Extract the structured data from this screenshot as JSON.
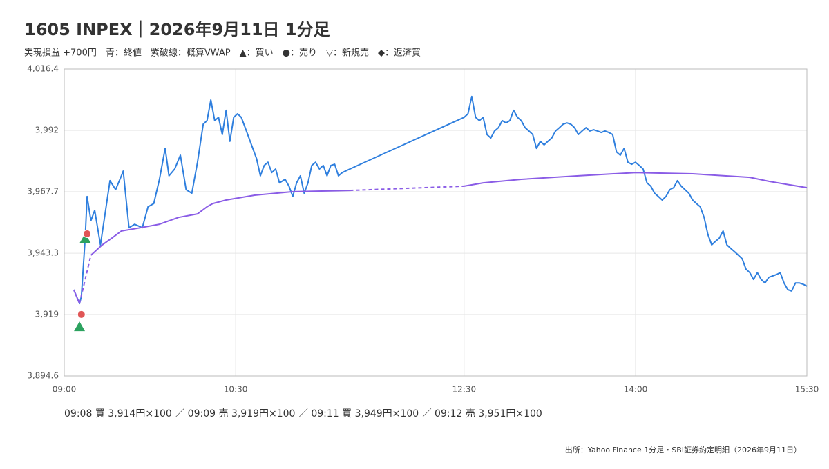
{
  "chart_data": {
    "type": "line",
    "title": "1605 INPEX｜2026年9月11日 1分足",
    "subtitle": "実現損益 +700円　青：終値　紫破線：概算VWAP　▲：買い　●：売り　▽：新規売　◆：返済買",
    "trades_text": "09:08 買 3,914円×100 ／ 09:09 売 3,919円×100 ／ 09:11 買 3,949円×100 ／ 09:12 売 3,951円×100",
    "source": "出所：Yahoo Finance 1分足・SBI証券約定明細（2026年9月11日）",
    "xlim": [
      "09:00",
      "15:30"
    ],
    "xticks": [
      "09:00",
      "10:30",
      "12:30",
      "14:00",
      "15:30"
    ],
    "ylim": [
      3894.6,
      4016.4
    ],
    "yticks": [
      {
        "value": 3894.6,
        "label": "3,894.6"
      },
      {
        "value": 3919,
        "label": "3,919"
      },
      {
        "value": 3943.3,
        "label": "3,943.3"
      },
      {
        "value": 3967.7,
        "label": "3,967.7"
      },
      {
        "value": 3992,
        "label": "3,992"
      },
      {
        "value": 4016.4,
        "label": "4,016.4"
      }
    ],
    "grid": true,
    "series": [
      {
        "color": "#2f7fde",
        "gap_style": "solid",
        "x": [
          "09:05",
          "09:08",
          "09:09",
          "09:11",
          "09:12",
          "09:14",
          "09:16",
          "09:19",
          "09:22",
          "09:24",
          "09:27",
          "09:30",
          "09:31",
          "09:34",
          "09:37",
          "09:41",
          "09:44",
          "09:47",
          "09:50",
          "09:53",
          "09:55",
          "09:58",
          "10:01",
          "10:04",
          "10:07",
          "10:10",
          "10:13",
          "10:15",
          "10:17",
          "10:19",
          "10:21",
          "10:23",
          "10:25",
          "10:27",
          "10:29",
          "10:31",
          "10:33",
          "10:35",
          "10:37",
          "10:39",
          "10:41",
          "10:43",
          "10:45",
          "10:47",
          "10:49",
          "10:51",
          "10:53",
          "10:56",
          "10:58",
          "11:00",
          "11:02",
          "11:04",
          "11:06",
          "11:08",
          "11:10",
          "11:12",
          "11:14",
          "11:16",
          "11:18",
          "11:20",
          "11:22",
          "11:24",
          "11:26",
          "11:30",
          "12:30",
          "12:32",
          "12:34",
          "12:36",
          "12:38",
          "12:40",
          "12:42",
          "12:44",
          "12:46",
          "12:48",
          "12:50",
          "12:52",
          "12:54",
          "12:56",
          "12:58",
          "13:00",
          "13:02",
          "13:04",
          "13:06",
          "13:08",
          "13:10",
          "13:12",
          "13:14",
          "13:16",
          "13:18",
          "13:20",
          "13:22",
          "13:24",
          "13:26",
          "13:28",
          "13:30",
          "13:32",
          "13:34",
          "13:36",
          "13:38",
          "13:40",
          "13:42",
          "13:44",
          "13:46",
          "13:48",
          "13:50",
          "13:52",
          "13:54",
          "13:56",
          "13:58",
          "14:00",
          "14:02",
          "14:04",
          "14:06",
          "14:08",
          "14:10",
          "14:12",
          "14:14",
          "14:16",
          "14:18",
          "14:20",
          "14:22",
          "14:24",
          "14:26",
          "14:28",
          "14:30",
          "14:32",
          "14:34",
          "14:36",
          "14:38",
          "14:40",
          "14:42",
          "14:44",
          "14:46",
          "14:48",
          "14:50",
          "14:52",
          "14:54",
          "14:56",
          "14:58",
          "15:00",
          "15:02",
          "15:04",
          "15:06",
          "15:08",
          "15:10",
          "15:12",
          "15:14",
          "15:16",
          "15:18",
          "15:20",
          "15:22",
          "15:24",
          "15:26",
          "15:28",
          "15:30"
        ],
        "values": [
          3928.8,
          3923.3,
          3926.1,
          3949.3,
          3965.8,
          3956.2,
          3960.3,
          3946.6,
          3961.7,
          3972.1,
          3968.5,
          3974.0,
          3975.9,
          3953.4,
          3954.8,
          3953.4,
          3961.7,
          3963.0,
          3972.6,
          3984.9,
          3974.0,
          3976.7,
          3982.2,
          3968.5,
          3967.1,
          3979.4,
          3994.5,
          3995.9,
          4004.1,
          3995.9,
          3997.2,
          3990.4,
          4000.0,
          3987.7,
          3997.2,
          3998.6,
          3997.2,
          3993.1,
          3989.0,
          3984.9,
          3980.8,
          3974.0,
          3978.1,
          3979.4,
          3975.3,
          3976.7,
          3971.2,
          3972.6,
          3969.9,
          3965.8,
          3971.2,
          3974.0,
          3967.1,
          3971.2,
          3978.1,
          3979.4,
          3976.7,
          3978.1,
          3974.0,
          3978.1,
          3978.6,
          3974.0,
          3975.3,
          3976.7,
          3997.2,
          3998.6,
          4005.5,
          3997.2,
          3995.9,
          3997.2,
          3990.4,
          3989.0,
          3991.8,
          3993.1,
          3995.9,
          3995.0,
          3995.9,
          4000.0,
          3997.2,
          3995.9,
          3993.1,
          3991.8,
          3990.4,
          3984.9,
          3987.7,
          3986.3,
          3987.7,
          3989.0,
          3991.8,
          3993.1,
          3994.5,
          3995.0,
          3994.5,
          3993.1,
          3990.4,
          3991.8,
          3993.1,
          3991.8,
          3992.3,
          3991.8,
          3991.2,
          3991.8,
          3991.2,
          3990.4,
          3983.5,
          3982.2,
          3984.9,
          3979.4,
          3978.6,
          3979.4,
          3978.1,
          3976.7,
          3971.2,
          3969.9,
          3967.1,
          3965.8,
          3964.4,
          3965.8,
          3968.5,
          3969.3,
          3972.1,
          3969.9,
          3968.5,
          3967.1,
          3964.4,
          3963.0,
          3961.7,
          3957.5,
          3950.7,
          3946.6,
          3948.0,
          3949.3,
          3952.1,
          3946.6,
          3945.2,
          3943.9,
          3942.5,
          3941.1,
          3937.0,
          3935.6,
          3932.9,
          3935.6,
          3932.9,
          3931.5,
          3933.7,
          3934.3,
          3934.8,
          3935.6,
          3931.5,
          3928.8,
          3928.3,
          3931.5,
          3931.5,
          3931.0,
          3930.2
        ]
      },
      {
        "color": "#8a5ce6",
        "gap_style": "dashed",
        "x": [
          "09:05",
          "09:08",
          "09:10",
          "09:14",
          "09:20",
          "09:25",
          "09:30",
          "09:40",
          "09:50",
          "10:00",
          "10:10",
          "10:15",
          "10:18",
          "10:25",
          "10:40",
          "11:00",
          "11:30",
          "12:00",
          "12:30",
          "12:40",
          "13:00",
          "13:30",
          "14:00",
          "14:30",
          "15:00",
          "15:10",
          "15:30"
        ],
        "values": [
          3928.8,
          3923.3,
          null,
          3942.5,
          3946.6,
          3949.3,
          3952.1,
          3953.4,
          3954.8,
          3957.5,
          3958.9,
          3961.7,
          3963.0,
          3964.4,
          3966.3,
          3967.7,
          3968.2,
          null,
          3969.9,
          3971.2,
          3972.6,
          3974.0,
          3975.3,
          3974.8,
          3973.4,
          3971.8,
          3969.3
        ]
      }
    ],
    "markers": [
      {
        "shape": "triangle",
        "color": "#2ca25f",
        "x": [
          "09:08",
          "09:11"
        ],
        "values": [
          3914,
          3949
        ]
      },
      {
        "shape": "circle",
        "color": "#e05656",
        "x": [
          "09:09",
          "09:12"
        ],
        "values": [
          3919,
          3951
        ]
      }
    ]
  }
}
